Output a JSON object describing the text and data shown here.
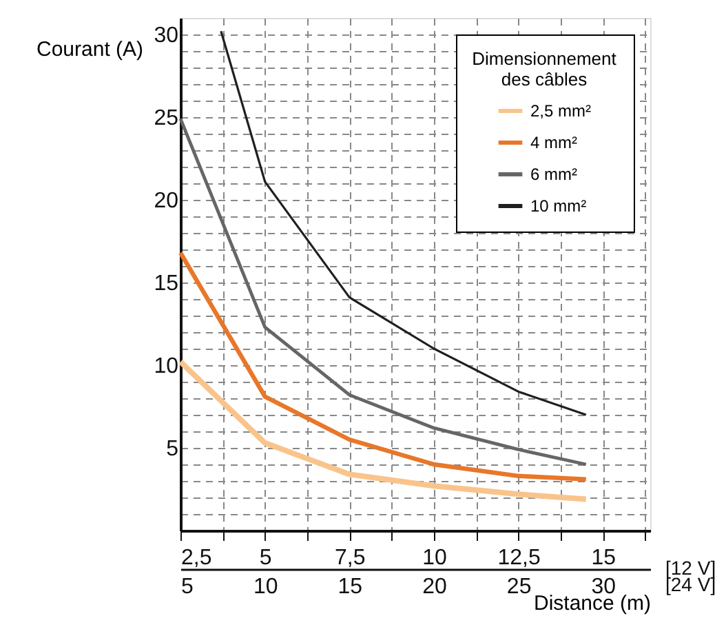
{
  "chart_data": {
    "type": "line",
    "xlabel": null,
    "ylabel": "Courant (A)",
    "x2label": "Distance (m)",
    "legend_title": "Dimensionnement des câbles",
    "annotations": [
      "[12 V]",
      "[24 V]"
    ],
    "x": [
      2.5,
      5,
      7.5,
      10,
      12.5,
      14.5
    ],
    "series": [
      {
        "name": "2,5 mm²",
        "color": "#f9c48c",
        "values": [
          10.2,
          5.3,
          3.4,
          2.7,
          2.2,
          1.9
        ]
      },
      {
        "name": "4 mm²",
        "color": "#e8772a",
        "values": [
          16.8,
          8.1,
          5.5,
          4.0,
          3.3,
          3.1
        ]
      },
      {
        "name": "6 mm²",
        "color": "#666666",
        "values": [
          24.9,
          12.3,
          8.2,
          6.2,
          4.9,
          4.0
        ]
      },
      {
        "name": "10 mm²",
        "color": "#1f1f1f",
        "x": [
          3.7,
          5,
          7.5,
          10,
          12.5,
          14.5
        ],
        "values": [
          30.2,
          21.1,
          14.1,
          11.0,
          8.4,
          7.0
        ]
      }
    ],
    "xlim": [
      2.5,
      16.4
    ],
    "ylim": [
      0,
      31
    ],
    "xticks": [
      {
        "value": 2.5,
        "label": "2,5"
      },
      {
        "value": 3.75,
        "label": null
      },
      5,
      {
        "value": 6.25,
        "label": null
      },
      {
        "value": 7.5,
        "label": "7,5"
      },
      {
        "value": 8.75,
        "label": null
      },
      10,
      {
        "value": 11.25,
        "label": null
      },
      {
        "value": 12.5,
        "label": "12,5"
      },
      {
        "value": 13.75,
        "label": null
      },
      15,
      {
        "value": 16.25,
        "label": null
      }
    ],
    "x2lim": [
      5,
      32.8
    ],
    "x2ticks": [
      5,
      10,
      15,
      20,
      25,
      30
    ],
    "yticks": [
      {
        "value": 1,
        "label": null
      },
      {
        "value": 2,
        "label": null
      },
      {
        "value": 3,
        "label": null
      },
      {
        "value": 4,
        "label": null
      },
      5,
      {
        "value": 6,
        "label": null
      },
      {
        "value": 7,
        "label": null
      },
      {
        "value": 8,
        "label": null
      },
      {
        "value": 9,
        "label": null
      },
      10,
      {
        "value": 11,
        "label": null
      },
      {
        "value": 12,
        "label": null
      },
      {
        "value": 13,
        "label": null
      },
      {
        "value": 14,
        "label": null
      },
      15,
      {
        "value": 16,
        "label": null
      },
      {
        "value": 17,
        "label": null
      },
      {
        "value": 18,
        "label": null
      },
      {
        "value": 19,
        "label": null
      },
      20,
      {
        "value": 21,
        "label": null
      },
      {
        "value": 22,
        "label": null
      },
      {
        "value": 23,
        "label": null
      },
      {
        "value": 24,
        "label": null
      },
      25,
      {
        "value": 26,
        "label": null
      },
      {
        "value": 27,
        "label": null
      },
      {
        "value": 28,
        "label": null
      },
      {
        "value": 29,
        "label": null
      },
      30
    ],
    "grid": true,
    "legend": "top right",
    "marker": "none",
    "line_style": "solid"
  }
}
